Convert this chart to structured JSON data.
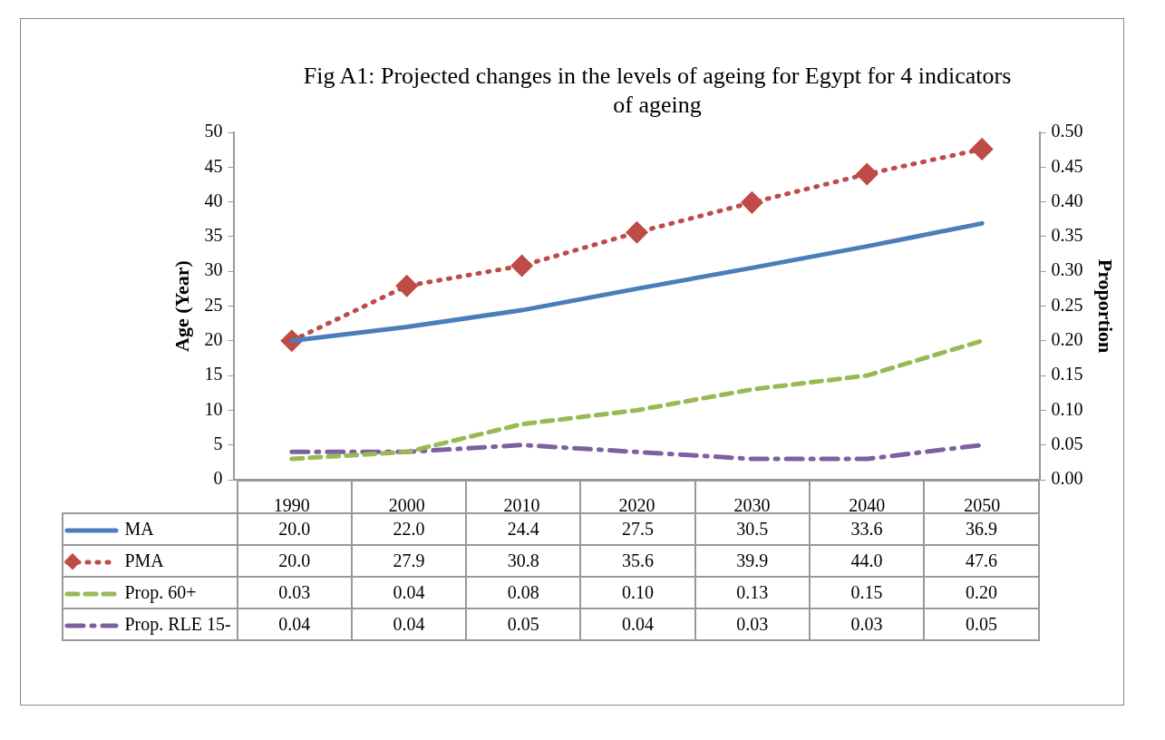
{
  "chart_data": {
    "type": "line",
    "title": "Fig A1: Projected changes in the levels of ageing for Egypt for 4 indicators of ageing",
    "ylabel": "Age (Year)",
    "y2label": "Proportion",
    "categories": [
      "1990",
      "2000",
      "2010",
      "2020",
      "2030",
      "2040",
      "2050"
    ],
    "ylim": [
      0,
      50
    ],
    "yticks": [
      0,
      5,
      10,
      15,
      20,
      25,
      30,
      35,
      40,
      45,
      50
    ],
    "y2lim": [
      0,
      0.5
    ],
    "y2ticks": [
      {
        "value": 0,
        "label": "0.00"
      },
      {
        "value": 0.05,
        "label": "0.05"
      },
      {
        "value": 0.1,
        "label": "0.10"
      },
      {
        "value": 0.15,
        "label": "0.15"
      },
      {
        "value": 0.2,
        "label": "0.20"
      },
      {
        "value": 0.25,
        "label": "0.25"
      },
      {
        "value": 0.3,
        "label": "0.30"
      },
      {
        "value": 0.35,
        "label": "0.35"
      },
      {
        "value": 0.4,
        "label": "0.40"
      },
      {
        "value": 0.45,
        "label": "0.45"
      },
      {
        "value": 0.5,
        "label": "0.50"
      }
    ],
    "grid": false,
    "legend": "bottom",
    "series": [
      {
        "name": "MA",
        "color": "#4a7ebb",
        "line_style": "solid",
        "marker": "none",
        "values": [
          20.0,
          22.0,
          24.4,
          27.5,
          30.5,
          33.6,
          36.9
        ],
        "value_labels": [
          "20.0",
          "22.0",
          "24.4",
          "27.5",
          "30.5",
          "33.6",
          "36.9"
        ]
      },
      {
        "name": "PMA",
        "color": "#be4b48",
        "line_style": "dotted",
        "marker": "diamond",
        "values": [
          20.0,
          27.9,
          30.8,
          35.6,
          39.9,
          44.0,
          47.6
        ],
        "value_labels": [
          "20.0",
          "27.9",
          "30.8",
          "35.6",
          "39.9",
          "44.0",
          "47.6"
        ]
      },
      {
        "name": "Prop. 60+",
        "color": "#98b954",
        "line_style": "dashed",
        "marker": "none",
        "axis": "y2",
        "values": [
          0.03,
          0.04,
          0.08,
          0.1,
          0.13,
          0.15,
          0.2
        ],
        "value_labels": [
          "0.03",
          "0.04",
          "0.08",
          "0.10",
          "0.13",
          "0.15",
          "0.20"
        ]
      },
      {
        "name": "Prop. RLE 15-",
        "color": "#7d60a0",
        "line_style": "dashdot",
        "marker": "none",
        "axis": "y2",
        "values": [
          0.04,
          0.04,
          0.05,
          0.04,
          0.03,
          0.03,
          0.05
        ],
        "value_labels": [
          "0.04",
          "0.04",
          "0.05",
          "0.04",
          "0.03",
          "0.03",
          "0.05"
        ]
      }
    ]
  }
}
